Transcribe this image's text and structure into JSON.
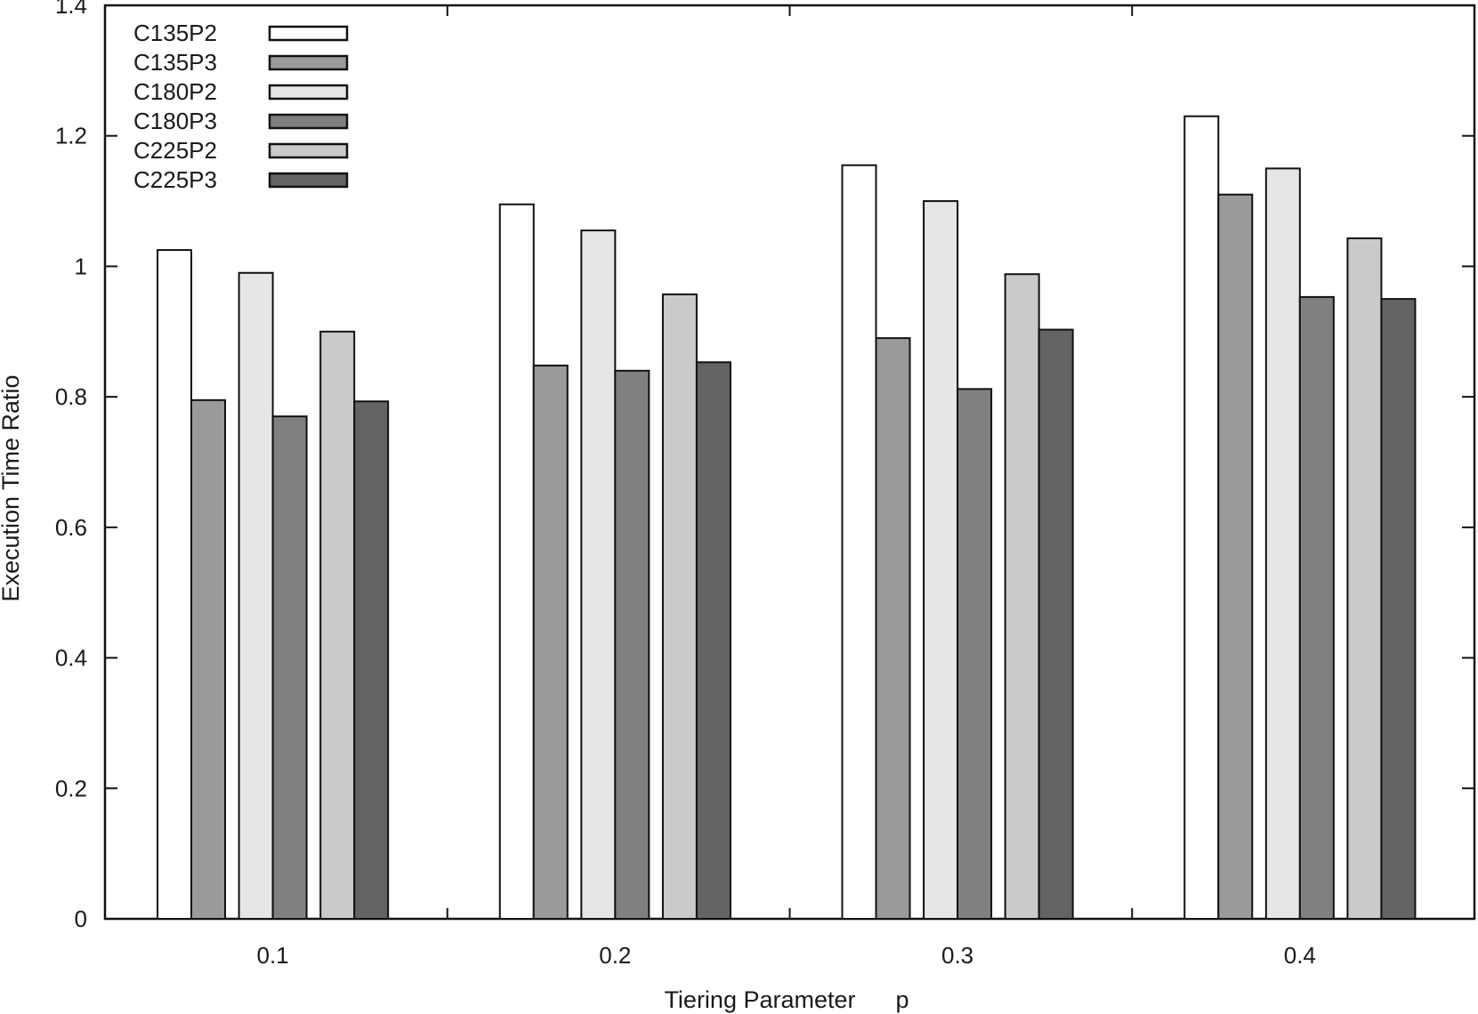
{
  "chart_data": {
    "type": "bar",
    "title": "",
    "xlabel": "Tiering Parameter      p",
    "ylabel": "Execution Time Ratio",
    "categories": [
      "0.1",
      "0.2",
      "0.3",
      "0.4"
    ],
    "ylim": [
      0,
      1.4
    ],
    "yticks": [
      0,
      0.2,
      0.4,
      0.6,
      0.8,
      1.0,
      1.2,
      1.4
    ],
    "ytick_labels": [
      "0",
      "0.2",
      "0.4",
      "0.6",
      "0.8",
      "1",
      "1.2",
      "1.4"
    ],
    "grid": false,
    "legend_position": "top-left",
    "series": [
      {
        "name": "C135P2",
        "color": "#ffffff",
        "values": [
          1.025,
          1.095,
          1.155,
          1.23
        ]
      },
      {
        "name": "C135P3",
        "color": "#9a9a9a",
        "values": [
          0.795,
          0.848,
          0.89,
          1.11
        ]
      },
      {
        "name": "C180P2",
        "color": "#e6e6e6",
        "values": [
          0.99,
          1.055,
          1.1,
          1.15
        ]
      },
      {
        "name": "C180P3",
        "color": "#808080",
        "values": [
          0.77,
          0.84,
          0.812,
          0.953
        ]
      },
      {
        "name": "C225P2",
        "color": "#cacaca",
        "values": [
          0.9,
          0.957,
          0.988,
          1.043
        ]
      },
      {
        "name": "C225P3",
        "color": "#646464",
        "values": [
          0.793,
          0.853,
          0.903,
          0.95
        ]
      }
    ]
  }
}
